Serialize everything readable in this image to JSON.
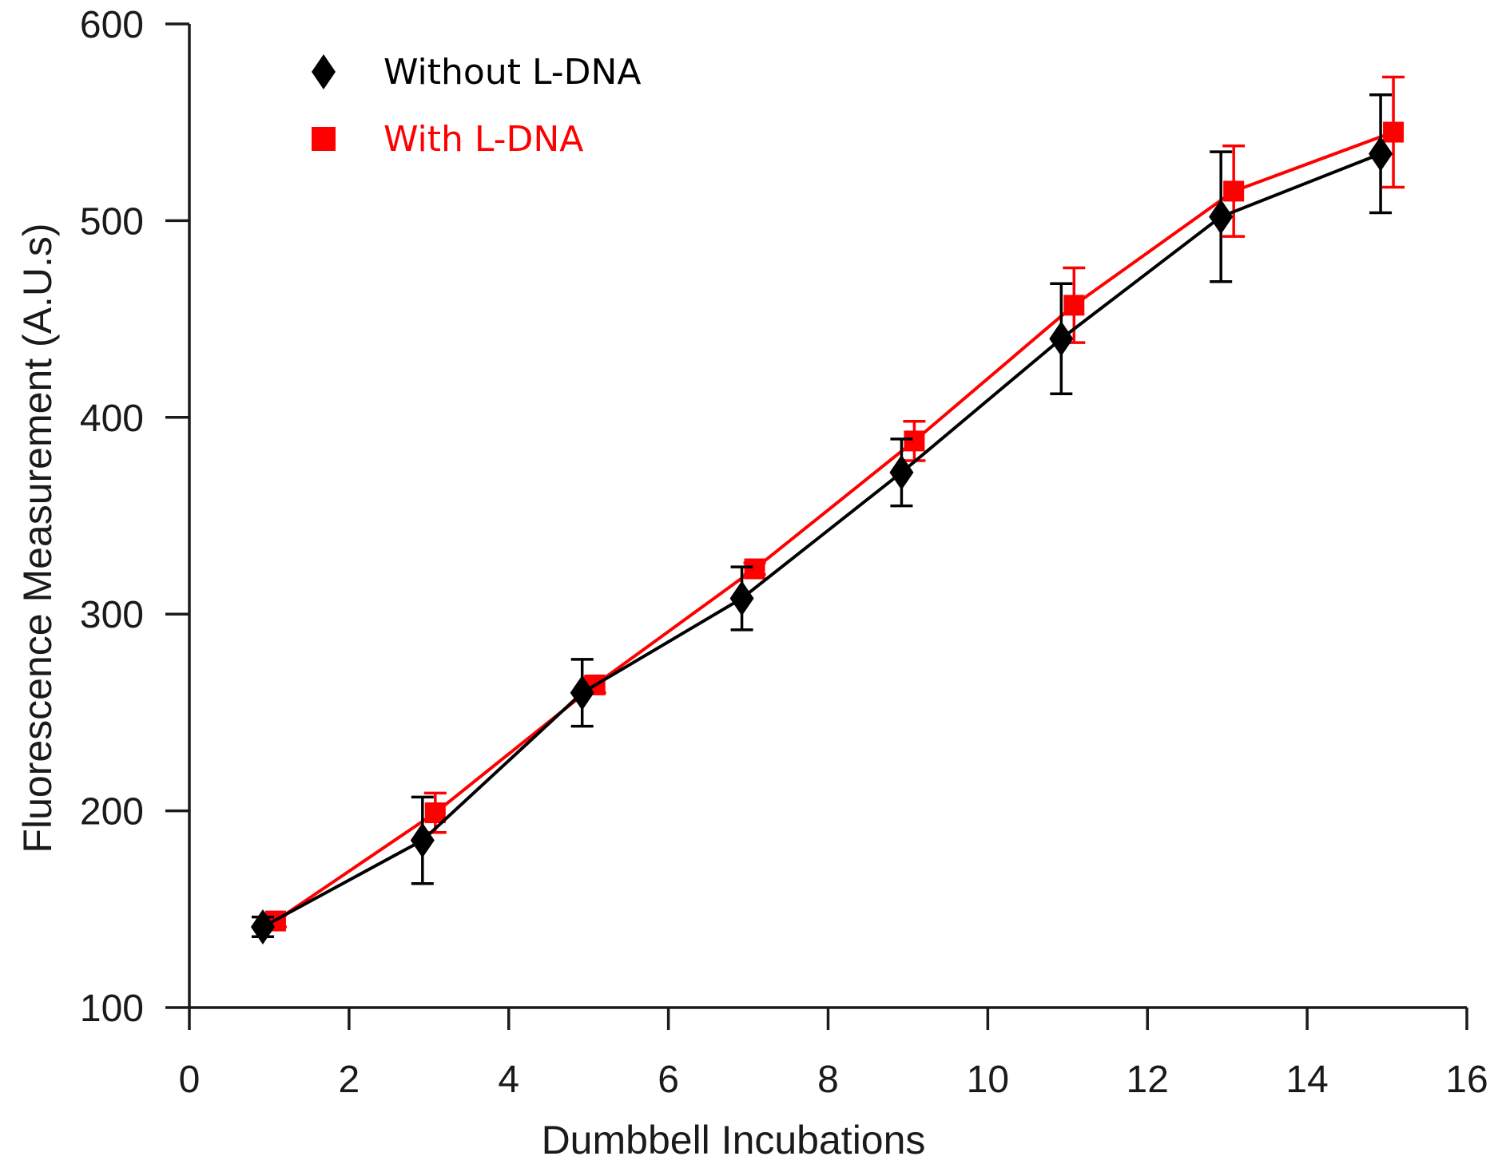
{
  "chart_data": {
    "type": "line",
    "title": "",
    "xlabel": "Dumbbell Incubations",
    "ylabel": "Fluorescence Measurement (A.U.s)",
    "xlim": [
      0,
      16
    ],
    "ylim": [
      100,
      600
    ],
    "xticks": [
      0,
      2,
      4,
      6,
      8,
      10,
      12,
      14,
      16
    ],
    "yticks": [
      100,
      200,
      300,
      400,
      500,
      600
    ],
    "grid": false,
    "legend_position": "top-left",
    "series": [
      {
        "name": "Without L-DNA",
        "color": "#000000",
        "marker": "diamond",
        "x": [
          1,
          3,
          5,
          7,
          9,
          11,
          13,
          15
        ],
        "y": [
          141,
          185,
          260,
          308,
          372,
          440,
          502,
          534
        ],
        "err": [
          5,
          22,
          17,
          16,
          17,
          28,
          33,
          30
        ]
      },
      {
        "name": "With L-DNA",
        "color": "#ff0000",
        "marker": "square",
        "x": [
          1,
          3,
          5,
          7,
          9,
          11,
          13,
          15
        ],
        "y": [
          144,
          199,
          264,
          323,
          388,
          457,
          515,
          545
        ],
        "err": [
          3,
          10,
          4,
          3,
          10,
          19,
          23,
          28
        ]
      }
    ]
  }
}
